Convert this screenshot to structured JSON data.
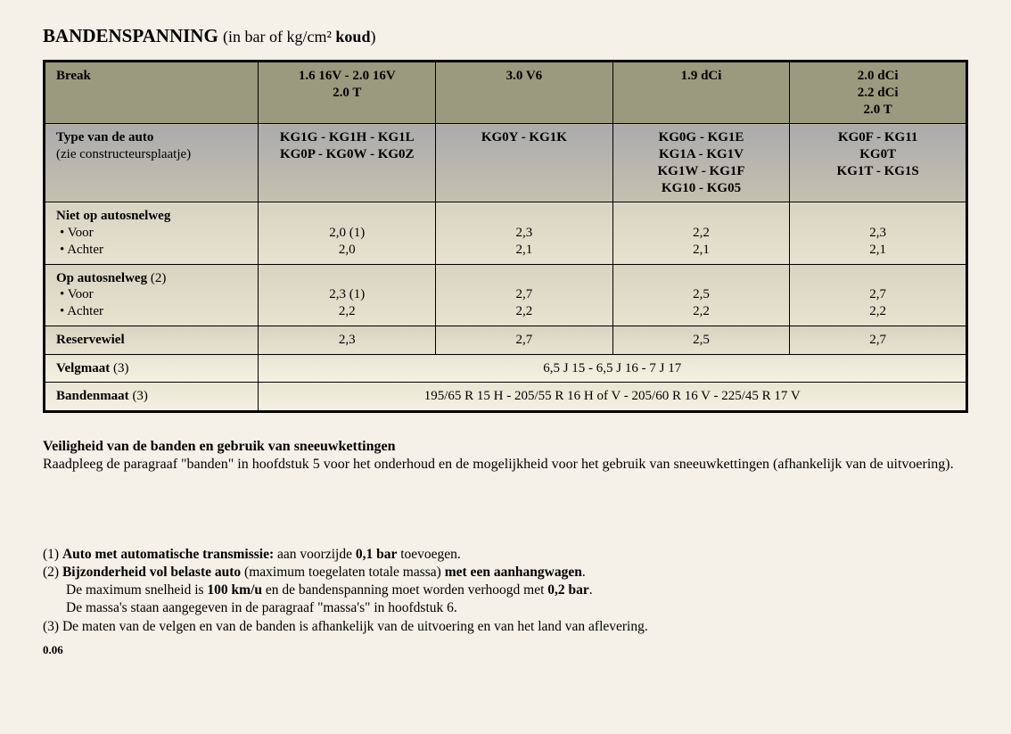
{
  "title": {
    "main": "BANDENSPANNING",
    "sub_prefix": "(in bar of kg/cm²",
    "sub_bold": " koud",
    "sub_suffix": ")"
  },
  "header": {
    "label": "Break",
    "cols": [
      "1.6 16V - 2.0 16V\n2.0 T",
      "3.0 V6",
      "1.9 dCi",
      "2.0 dCi\n2.2 dCi\n2.0 T"
    ]
  },
  "type_row": {
    "label_bold": "Type van de auto",
    "label_note": "(zie constructeursplaatje)",
    "cols": [
      "KG1G - KG1H - KG1L\nKG0P - KG0W - KG0Z",
      "KG0Y - KG1K",
      "KG0G - KG1E\nKG1A - KG1V\nKG1W - KG1F\nKG10 - KG05",
      "KG0F - KG11\nKG0T\nKG1T - KG1S"
    ]
  },
  "rows": [
    {
      "title": "Niet op autosnelweg",
      "bullets": [
        "Voor",
        "Achter"
      ],
      "cols": [
        [
          "2,0 (1)",
          "2,0"
        ],
        [
          "2,3",
          "2,1"
        ],
        [
          "2,2",
          "2,1"
        ],
        [
          "2,3",
          "2,1"
        ]
      ]
    },
    {
      "title": "Op autosnelweg",
      "title_note": " (2)",
      "bullets": [
        "Voor",
        "Achter"
      ],
      "cols": [
        [
          "2,3 (1)",
          "2,2"
        ],
        [
          "2,7",
          "2,2"
        ],
        [
          "2,5",
          "2,2"
        ],
        [
          "2,7",
          "2,2"
        ]
      ]
    },
    {
      "title": "Reservewiel",
      "cols": [
        [
          "2,3"
        ],
        [
          "2,7"
        ],
        [
          "2,5"
        ],
        [
          "2,7"
        ]
      ]
    }
  ],
  "span_rows": [
    {
      "label": "Velgmaat",
      "note": " (3)",
      "value": "6,5 J 15 - 6,5 J 16 - 7 J 17"
    },
    {
      "label": "Bandenmaat",
      "note": " (3)",
      "value": "195/65 R 15 H - 205/55 R 16 H of V - 205/60 R 16 V - 225/45 R 17 V"
    }
  ],
  "safety": {
    "title": "Veiligheid van de banden en gebruik van sneeuwkettingen",
    "body": "Raadpleeg de paragraaf \"banden\" in hoofdstuk 5 voor het onderhoud en de mogelijkheid voor het gebruik van sneeuwkettingen (afhankelijk van de uitvoering)."
  },
  "footnotes": {
    "fn1": {
      "num": "(1) ",
      "b1": "Auto met automatische transmissie:",
      "t1": " aan voorzijde ",
      "b2": "0,1 bar",
      "t2": " toevoegen."
    },
    "fn2": {
      "num": "(2) ",
      "b1": "Bijzonderheid vol belaste auto",
      "t1": " (maximum toegelaten totale massa) ",
      "b2": "met een aanhangwagen",
      "t2": ".",
      "line2a": "De maximum snelheid is ",
      "line2b": "100 km/u",
      "line2c": " en de bandenspanning moet worden verhoogd met ",
      "line2d": "0,2 bar",
      "line2e": ".",
      "line3": "De massa's staan aangegeven in de paragraaf \"massa's\" in hoofdstuk 6."
    },
    "fn3": {
      "num": "(3) ",
      "text": "De maten van de velgen en van de banden is afhankelijk van de uitvoering en van het land van aflevering."
    }
  },
  "page_number": "0.06",
  "style": {
    "page_bg": "#f5f0e8",
    "table_border": "#000000",
    "hdr_bg": "#9a9a7e",
    "font_family": "Georgia, serif"
  }
}
